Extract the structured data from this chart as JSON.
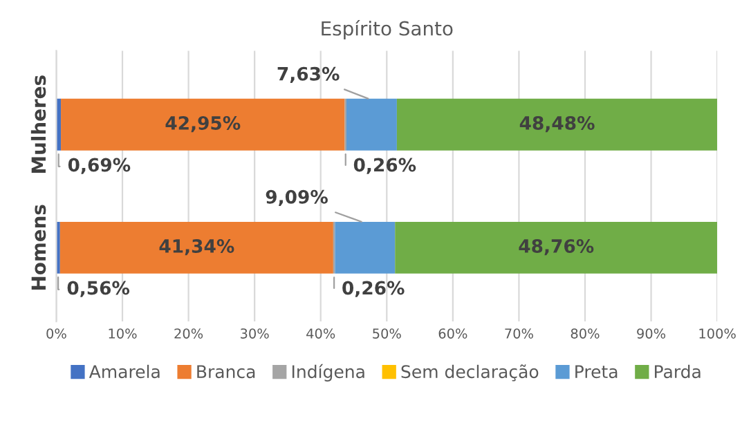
{
  "chart_data": {
    "type": "bar",
    "orientation": "horizontal",
    "stacked": true,
    "title": "Espírito Santo",
    "categories": [
      "Mulheres",
      "Homens"
    ],
    "series": [
      {
        "name": "Amarela",
        "color": "#4472c4",
        "values": [
          0.69,
          0.56
        ],
        "value_labels": [
          "0,69%",
          "0,56%"
        ]
      },
      {
        "name": "Branca",
        "color": "#ed7d31",
        "values": [
          42.95,
          41.34
        ],
        "value_labels": [
          "42,95%",
          "41,34%"
        ]
      },
      {
        "name": "Indígena",
        "color": "#a5a5a5",
        "values": [
          0.26,
          0.26
        ],
        "value_labels": [
          "0,26%",
          "0,26%"
        ]
      },
      {
        "name": "Sem declaração",
        "color": "#ffc000",
        "values": [
          0,
          0
        ],
        "value_labels": [
          null,
          null
        ]
      },
      {
        "name": "Preta",
        "color": "#5b9bd5",
        "values": [
          7.63,
          9.09
        ],
        "value_labels": [
          "7,63%",
          "9,09%"
        ]
      },
      {
        "name": "Parda",
        "color": "#70ad47",
        "values": [
          48.48,
          48.76
        ],
        "value_labels": [
          "48,48%",
          "48,76%"
        ]
      }
    ],
    "xlim": [
      0,
      100
    ],
    "xticks": [
      {
        "value": 0,
        "label": "0%"
      },
      {
        "value": 10,
        "label": "10%"
      },
      {
        "value": 20,
        "label": "20%"
      },
      {
        "value": 30,
        "label": "30%"
      },
      {
        "value": 40,
        "label": "40%"
      },
      {
        "value": 50,
        "label": "50%"
      },
      {
        "value": 60,
        "label": "60%"
      },
      {
        "value": 70,
        "label": "70%"
      },
      {
        "value": 80,
        "label": "80%"
      },
      {
        "value": 90,
        "label": "90%"
      },
      {
        "value": 100,
        "label": "100%"
      }
    ],
    "grid": "x",
    "legend": "bottom"
  }
}
